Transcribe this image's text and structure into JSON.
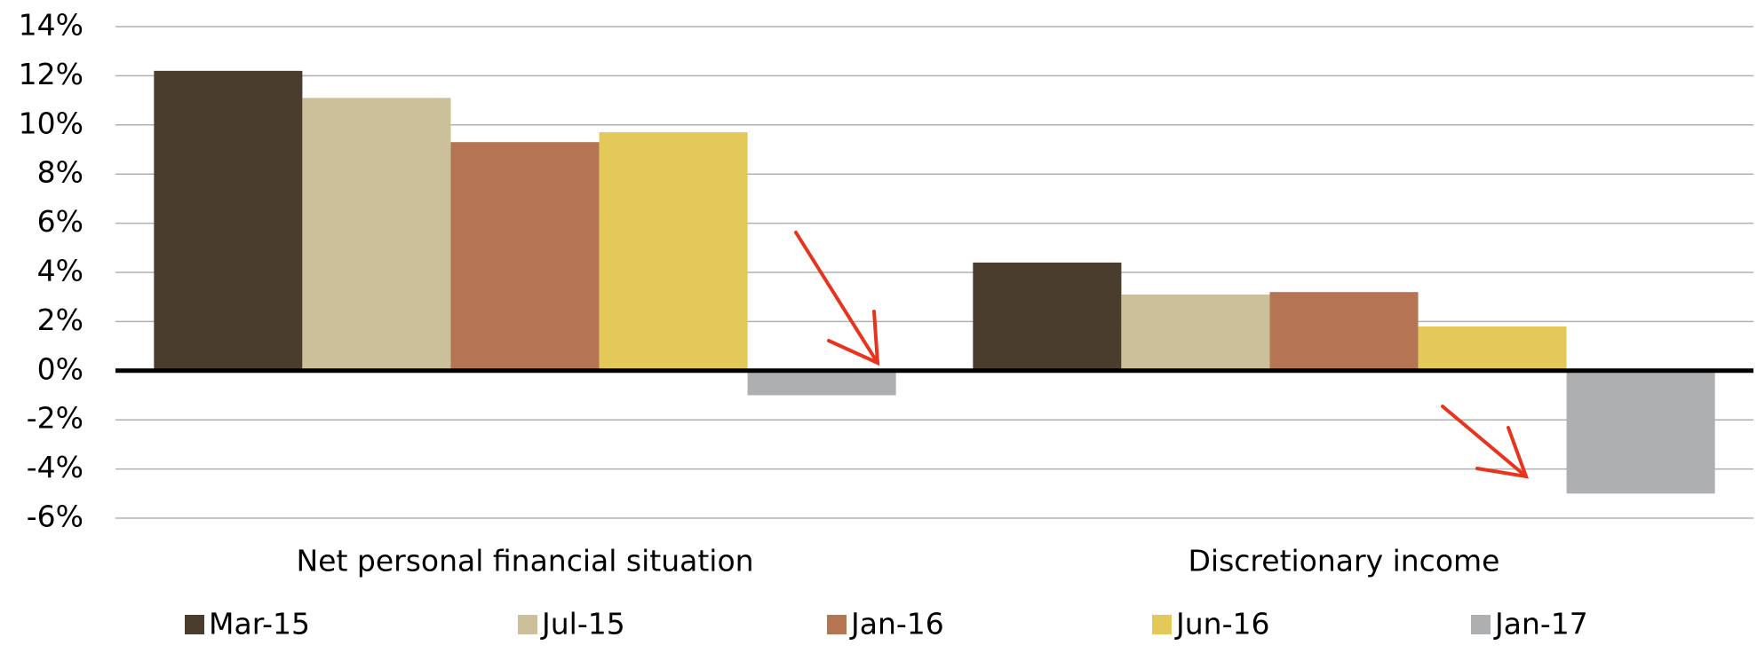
{
  "chart_data": {
    "type": "bar",
    "categories": [
      "Net personal financial situation",
      "Discretionary income"
    ],
    "series": [
      {
        "name": "Mar-15",
        "color": "#4a3d2e",
        "values": [
          12.2,
          4.4
        ]
      },
      {
        "name": "Jul-15",
        "color": "#cbc09a",
        "values": [
          11.1,
          3.1
        ]
      },
      {
        "name": "Jan-16",
        "color": "#b57552",
        "values": [
          9.3,
          3.2
        ]
      },
      {
        "name": "Jun-16",
        "color": "#e2c95a",
        "values": [
          9.7,
          1.8
        ]
      },
      {
        "name": "Jan-17",
        "color": "#aeafb1",
        "values": [
          -1.0,
          -5.0
        ]
      }
    ],
    "ylim": [
      -6,
      14
    ],
    "yticks": [
      {
        "value": -6,
        "label": "-6%"
      },
      {
        "value": -4,
        "label": "-4%"
      },
      {
        "value": -2,
        "label": "-2%"
      },
      {
        "value": 0,
        "label": "0%"
      },
      {
        "value": 2,
        "label": "2%"
      },
      {
        "value": 4,
        "label": "4%"
      },
      {
        "value": 6,
        "label": "6%"
      },
      {
        "value": 8,
        "label": "8%"
      },
      {
        "value": 10,
        "label": "10%"
      },
      {
        "value": 12,
        "label": "12%"
      },
      {
        "value": 14,
        "label": "14%"
      }
    ],
    "grid": true,
    "legend": "bottom"
  }
}
